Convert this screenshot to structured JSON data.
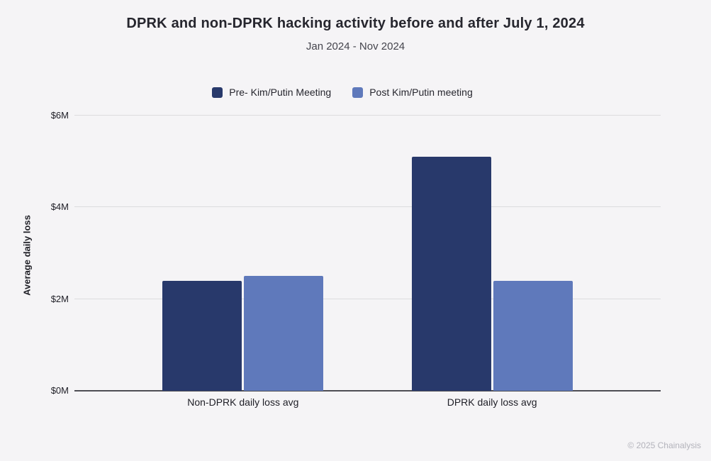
{
  "title": "DPRK and non-DPRK hacking activity before and after July 1, 2024",
  "subtitle": "Jan 2024 - Nov 2024",
  "footer_credit": "© 2025 Chainalysis",
  "colors": {
    "background": "#f5f4f6",
    "gridline": "#dcdcde",
    "axis_line": "#4d4d54",
    "title_text": "#26262e",
    "subtitle_text": "#45454d",
    "tick_text": "#202028",
    "credit_text": "#b3b3bb",
    "series_pre": "#28396b",
    "series_post": "#5f79bb"
  },
  "chart_data": {
    "type": "bar",
    "title": "DPRK and non-DPRK hacking activity before and after July 1, 2024",
    "subtitle": "Jan 2024 - Nov 2024",
    "categories": [
      "Non-DPRK daily loss avg",
      "DPRK daily loss avg"
    ],
    "series": [
      {
        "name": "Pre- Kim/Putin Meeting",
        "color": "#28396b",
        "values": [
          2.4,
          5.1
        ]
      },
      {
        "name": "Post Kim/Putin meeting",
        "color": "#5f79bb",
        "values": [
          2.5,
          2.4
        ]
      }
    ],
    "xlabel": "",
    "ylabel": "Average daily loss",
    "ylim": [
      0,
      6
    ],
    "yticks": [
      0,
      2,
      4,
      6
    ],
    "ytick_labels": [
      "$0M",
      "$2M",
      "$4M",
      "$6M"
    ],
    "grid": true,
    "legend_position": "top"
  }
}
